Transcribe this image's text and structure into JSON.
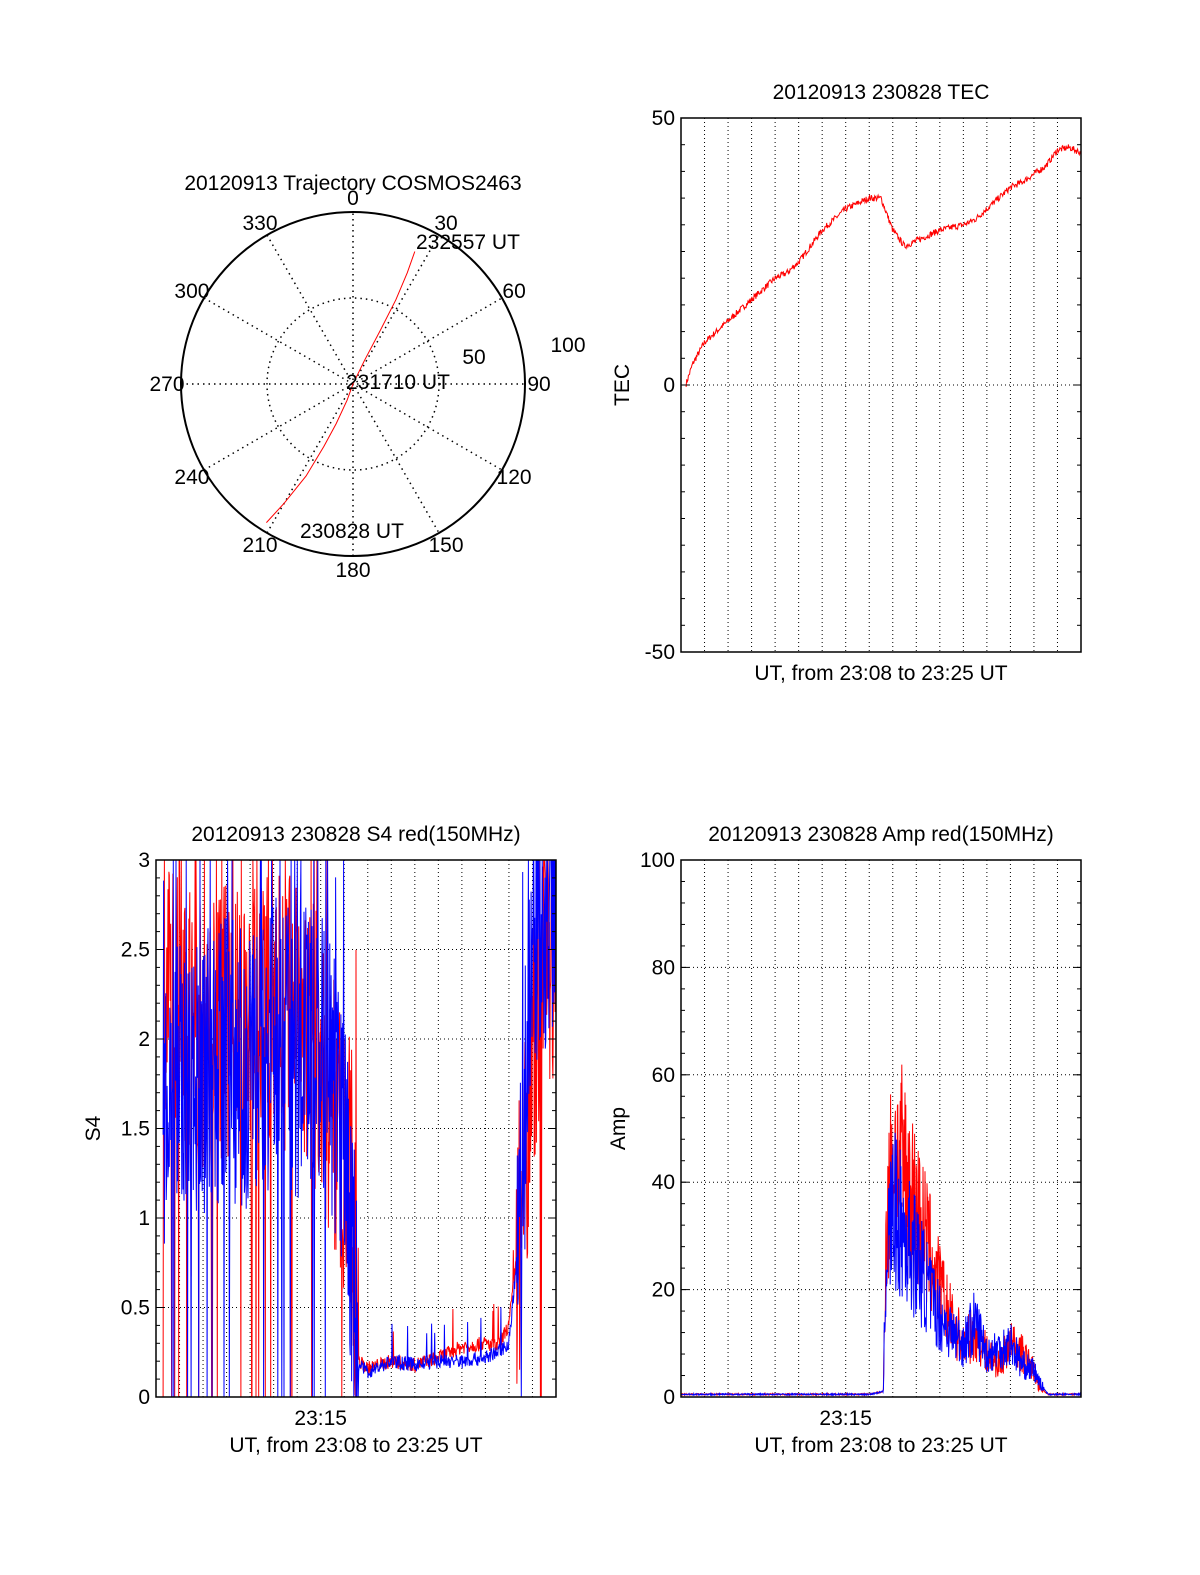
{
  "colors": {
    "red": "#ff0000",
    "blue": "#0000ff",
    "axis": "#000000",
    "grid": "#000000"
  },
  "chart_data": [
    {
      "type": "polar",
      "title": "20120913 Trajectory COSMOS2463",
      "angle_labels": [
        {
          "angle": 0,
          "label": "0"
        },
        {
          "angle": 30,
          "label": "30"
        },
        {
          "angle": 60,
          "label": "60"
        },
        {
          "angle": 90,
          "label": "90"
        },
        {
          "angle": 120,
          "label": "120"
        },
        {
          "angle": 150,
          "label": "150"
        },
        {
          "angle": 180,
          "label": "180"
        },
        {
          "angle": 210,
          "label": "210"
        },
        {
          "angle": 240,
          "label": "240"
        },
        {
          "angle": 270,
          "label": "270"
        },
        {
          "angle": 300,
          "label": "300"
        },
        {
          "angle": 330,
          "label": "330"
        }
      ],
      "radial_labels": [
        "50",
        "100"
      ],
      "rlim": [
        0,
        100
      ],
      "grid": true,
      "trajectory": {
        "color": "red",
        "points": [
          {
            "az": 212,
            "r": 95
          },
          {
            "az": 210,
            "r": 80
          },
          {
            "az": 207,
            "r": 60
          },
          {
            "az": 205,
            "r": 40
          },
          {
            "az": 203,
            "r": 25
          },
          {
            "az": 200,
            "r": 10
          },
          {
            "az": 0,
            "r": 0
          },
          {
            "az": 26,
            "r": 15
          },
          {
            "az": 27,
            "r": 35
          },
          {
            "az": 27,
            "r": 55
          },
          {
            "az": 26,
            "r": 72
          },
          {
            "az": 25,
            "r": 85
          }
        ]
      },
      "annotations": [
        "230828 UT",
        "231710 UT",
        "232557 UT"
      ]
    },
    {
      "type": "line",
      "title": "20120913 230828 TEC",
      "xlabel": "UT, from 23:08 to 23:25 UT",
      "ylabel": "TEC",
      "xlim": [
        0,
        17
      ],
      "ylim": [
        -50,
        50
      ],
      "yticks": [
        "50",
        "0",
        "-50"
      ],
      "grid": true,
      "series": [
        {
          "color": "red",
          "x": [
            0.2,
            0.5,
            1,
            1.5,
            2,
            2.5,
            3,
            3.5,
            4,
            4.5,
            5,
            5.5,
            6,
            6.5,
            7,
            7.5,
            8,
            8.5,
            9,
            9.5,
            10,
            10.5,
            11,
            11.5,
            12,
            12.5,
            13,
            13.5,
            14,
            14.5,
            15,
            15.5,
            16,
            16.5,
            17
          ],
          "y": [
            0,
            4,
            8,
            10,
            12,
            14,
            16,
            18,
            20,
            21,
            23,
            26,
            29,
            31,
            33,
            34,
            35,
            35,
            29,
            26,
            27,
            28,
            29,
            29.5,
            30,
            31,
            33,
            35,
            37,
            38,
            39.5,
            41,
            44,
            44.5,
            43.5
          ]
        }
      ]
    },
    {
      "type": "line",
      "title": "20120913 230828 S4 red(150MHz)",
      "xlabel": "UT, from 23:08 to 23:25 UT",
      "ylabel": "S4",
      "xlim": [
        0,
        17
      ],
      "ylim": [
        0,
        3
      ],
      "yticks": [
        "3",
        "2.5",
        "2",
        "1.5",
        "1",
        "0.5",
        "0"
      ],
      "xtick_label": {
        "x": 7,
        "label": "23:15"
      },
      "grid": true,
      "series": [
        {
          "color": "red",
          "x": [
            0.3,
            1,
            2,
            3,
            4,
            5,
            6,
            7,
            7.8,
            8.3,
            8.6,
            9,
            10,
            11,
            12,
            13,
            14,
            14.5,
            15,
            15.5,
            16,
            16.5,
            17
          ],
          "y": [
            2.2,
            2.3,
            2.0,
            2.1,
            2.0,
            2.2,
            2.1,
            1.9,
            1.5,
            1.2,
            0.2,
            0.16,
            0.2,
            0.18,
            0.22,
            0.28,
            0.3,
            0.28,
            0.4,
            1.0,
            2.0,
            2.5,
            2.6
          ]
        },
        {
          "color": "blue",
          "x": [
            0.3,
            1,
            2,
            3,
            4,
            5,
            6,
            7,
            7.8,
            8.3,
            8.6,
            9,
            10,
            11,
            12,
            13,
            14,
            14.5,
            15,
            15.5,
            16,
            16.5,
            17
          ],
          "y": [
            1.5,
            1.9,
            1.8,
            1.9,
            1.8,
            2.0,
            1.9,
            2.0,
            1.6,
            0.9,
            0.18,
            0.14,
            0.2,
            0.18,
            0.2,
            0.2,
            0.22,
            0.25,
            0.3,
            1.0,
            2.6,
            2.7,
            2.8
          ]
        }
      ]
    },
    {
      "type": "line",
      "title": "20120913 230828 Amp red(150MHz)",
      "xlabel": "UT, from 23:08 to 23:25 UT",
      "ylabel": "Amp",
      "xlim": [
        0,
        17
      ],
      "ylim": [
        0,
        100
      ],
      "yticks": [
        "100",
        "80",
        "60",
        "40",
        "20",
        "0"
      ],
      "xtick_label": {
        "x": 7,
        "label": "23:15"
      },
      "grid": true,
      "series": [
        {
          "color": "red",
          "x": [
            0,
            2,
            4,
            6,
            8,
            8.6,
            8.7,
            9,
            9.5,
            10,
            10.5,
            11,
            11.5,
            12,
            12.5,
            13,
            13.5,
            14,
            14.5,
            15,
            15.2,
            15.6,
            17
          ],
          "y": [
            0.5,
            0.5,
            0.5,
            0.5,
            0.5,
            1,
            30,
            45,
            42,
            35,
            28,
            20,
            14,
            10,
            12,
            8,
            6,
            10,
            8,
            5,
            2,
            0.5,
            0.5
          ]
        },
        {
          "color": "blue",
          "x": [
            0,
            2,
            4,
            6,
            8,
            8.6,
            8.7,
            9,
            9.5,
            10,
            10.5,
            11,
            11.5,
            12,
            12.5,
            13,
            13.5,
            14,
            14.5,
            15,
            15.2,
            15.6,
            17
          ],
          "y": [
            0.5,
            0.5,
            0.5,
            0.5,
            0.5,
            1,
            25,
            35,
            30,
            26,
            20,
            15,
            12,
            10,
            14,
            8,
            9,
            10,
            6,
            5,
            3,
            0.5,
            0.5
          ]
        }
      ]
    }
  ]
}
